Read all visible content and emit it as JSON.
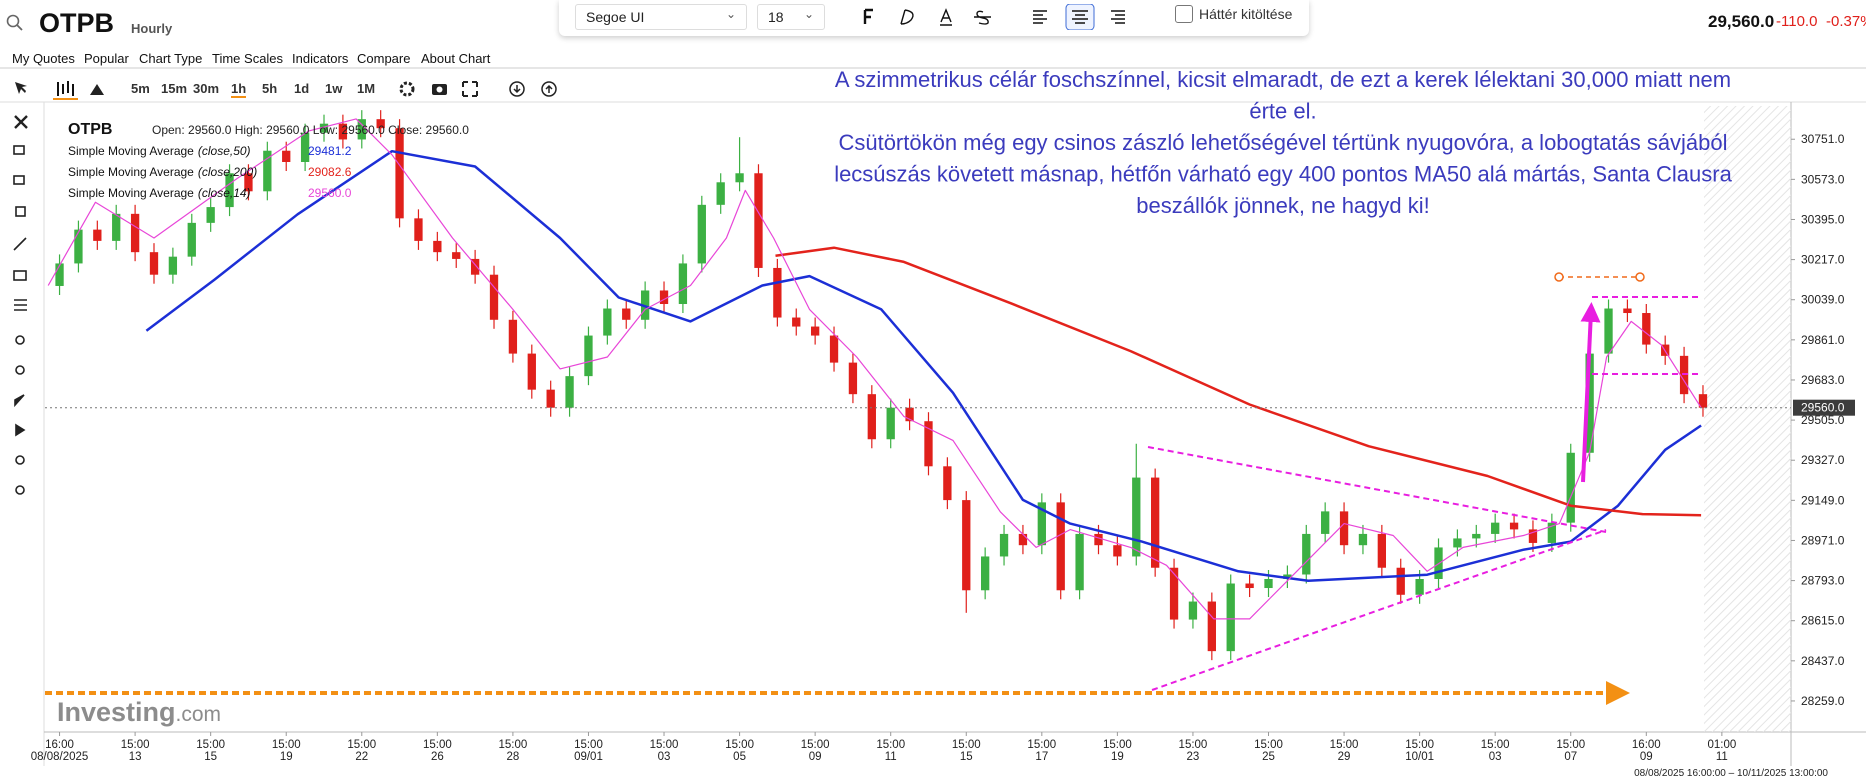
{
  "header": {
    "symbol": "OTPB",
    "interval": "Hourly",
    "price": "29,560.0",
    "change": "-110.0",
    "change_percent": "-0.37%"
  },
  "text_toolbar": {
    "font": "Segoe UI",
    "size": "18",
    "fill_label": "Háttér kitöltése"
  },
  "menu": [
    "My Quotes",
    "Popular",
    "Chart Type",
    "Time Scales",
    "Indicators",
    "Compare",
    "About Chart"
  ],
  "timeframes": [
    "5m",
    "15m",
    "30m",
    "1h",
    "5h",
    "1d",
    "1w",
    "1M"
  ],
  "chart_data": {
    "type": "candlestick",
    "symbol": "OTPB",
    "ohlc_label": "Open: 29560.0 High: 29560.0 Low: 29560.0 Close: 29560.0",
    "up_color": "#3cb043",
    "down_color": "#e0201b",
    "open": [
      30100,
      30200,
      30350,
      30300,
      30420,
      30250,
      30150,
      30230,
      30380,
      30450,
      30600,
      30520,
      30700,
      30650,
      30780,
      30820,
      30750,
      30840,
      30800,
      30400,
      30300,
      30250,
      30220,
      30150,
      29950,
      29800,
      29640,
      29560,
      29700,
      29880,
      30000,
      29950,
      30080,
      30020,
      30200,
      30460,
      30560,
      30600,
      30180,
      29960,
      29920,
      29880,
      29760,
      29620,
      29420,
      29560,
      29500,
      29300,
      29150,
      28750,
      28900,
      29000,
      28950,
      29140,
      28750,
      29000,
      28950,
      28900,
      29250,
      28850,
      28620,
      28700,
      28480,
      28780,
      28760,
      28800,
      28820,
      29000,
      29100,
      28950,
      29000,
      28850,
      28730,
      28800,
      28940,
      28980,
      29000,
      29050,
      29020,
      28960,
      29050,
      29360,
      29800,
      30000,
      29980,
      29840,
      29790,
      29620
    ],
    "high": [
      30240,
      30390,
      30390,
      30460,
      30460,
      30290,
      30270,
      30420,
      30490,
      30640,
      30640,
      30740,
      30740,
      30820,
      30860,
      30860,
      30880,
      30880,
      30840,
      30440,
      30340,
      30290,
      30260,
      30190,
      29990,
      29840,
      29680,
      29740,
      29920,
      30040,
      30040,
      30120,
      30120,
      30240,
      30500,
      30600,
      30760,
      30640,
      30220,
      30000,
      29960,
      29920,
      29800,
      29660,
      29600,
      29600,
      29540,
      29340,
      29190,
      28940,
      29040,
      29040,
      29180,
      29180,
      29040,
      29040,
      28990,
      29400,
      29290,
      28890,
      28740,
      28740,
      28820,
      28820,
      28840,
      28860,
      29040,
      29140,
      29140,
      29040,
      29040,
      28890,
      28840,
      28980,
      29020,
      29040,
      29090,
      29090,
      29060,
      29090,
      29400,
      29840,
      30040,
      30040,
      30020,
      29880,
      29830,
      29660
    ],
    "low": [
      30060,
      30160,
      30260,
      30260,
      30210,
      30110,
      30110,
      30190,
      30340,
      30410,
      30480,
      30480,
      30610,
      30610,
      30740,
      30710,
      30710,
      30760,
      30360,
      30260,
      30210,
      30180,
      30110,
      29910,
      29760,
      29600,
      29520,
      29520,
      29660,
      29840,
      29910,
      29910,
      29980,
      29980,
      30160,
      30420,
      30520,
      30140,
      29920,
      29880,
      29840,
      29720,
      29580,
      29380,
      29380,
      29460,
      29260,
      29110,
      28650,
      28710,
      28860,
      28910,
      28910,
      28710,
      28710,
      28910,
      28860,
      28860,
      28810,
      28580,
      28580,
      28440,
      28440,
      28720,
      28720,
      28760,
      28780,
      28960,
      28910,
      28910,
      28810,
      28690,
      28690,
      28760,
      28900,
      28940,
      28960,
      28980,
      28920,
      28920,
      29010,
      29320,
      29760,
      29940,
      29800,
      29750,
      29580,
      29520
    ],
    "close": [
      30200,
      30350,
      30300,
      30420,
      30250,
      30150,
      30230,
      30380,
      30450,
      30600,
      30520,
      30700,
      30650,
      30780,
      30820,
      30750,
      30840,
      30800,
      30400,
      30300,
      30250,
      30220,
      30150,
      29950,
      29800,
      29640,
      29560,
      29700,
      29880,
      30000,
      29950,
      30080,
      30020,
      30200,
      30460,
      30560,
      30600,
      30180,
      29960,
      29920,
      29880,
      29760,
      29620,
      29420,
      29560,
      29500,
      29300,
      29150,
      28750,
      28900,
      29000,
      28950,
      29140,
      28750,
      29000,
      28950,
      28900,
      29250,
      28850,
      28620,
      28700,
      28480,
      28780,
      28760,
      28800,
      28820,
      29000,
      29100,
      28950,
      29000,
      28850,
      28730,
      28800,
      28940,
      28980,
      29000,
      29050,
      29020,
      28960,
      29050,
      29360,
      29800,
      30000,
      29980,
      29840,
      29790,
      29620,
      29560
    ],
    "series": [
      {
        "name": "Simple Moving Average",
        "params": "(close,50)",
        "color": "#1c2fd6",
        "width": 2.5,
        "x": [
          4.6,
          8.2,
          12.6,
          17.6,
          22,
          26.5,
          29.6,
          33.4,
          37.2,
          39.7,
          43.5,
          47.3,
          51,
          53.5,
          57.3,
          62.4,
          66.1,
          72.4,
          77.5,
          80,
          82.5,
          85,
          86.9
        ],
        "values": [
          29901,
          30128,
          30418,
          30698,
          30630,
          30313,
          30049,
          29943,
          30102,
          30144,
          29996,
          29626,
          29151,
          29046,
          28966,
          28834,
          28792,
          28819,
          28930,
          28966,
          29125,
          29373,
          29481.2
        ],
        "last_label": "29481.2"
      },
      {
        "name": "Simple Moving Average",
        "params": "(close,200)",
        "color": "#e3231c",
        "width": 2.5,
        "x": [
          37.9,
          41,
          44.7,
          50.4,
          56.7,
          63,
          69.3,
          75.6,
          80,
          83.8,
          86.9
        ],
        "values": [
          30234,
          30270,
          30207,
          30022,
          29811,
          29574,
          29389,
          29257,
          29125,
          29088,
          29082.6
        ],
        "last_label": "29082.6"
      },
      {
        "name": "Simple Moving Average",
        "params": "(close,14)",
        "color": "#e846d8",
        "width": 1.2,
        "x": [
          -0.6,
          1.9,
          5,
          9.4,
          13.2,
          15.7,
          17.6,
          20.8,
          24,
          26.5,
          29,
          31,
          33.4,
          35.3,
          36.3,
          37.8,
          39.7,
          42.2,
          44.7,
          47.3,
          49.8,
          51.7,
          53.5,
          56.7,
          58.6,
          61.1,
          63,
          65.5,
          68,
          70.6,
          72.4,
          74.3,
          77.5,
          79.4,
          81,
          81.9,
          83.2,
          84.8,
          86,
          86.9
        ],
        "values": [
          30102,
          30471,
          30313,
          30577,
          30788,
          30841,
          30682,
          30313,
          29996,
          29732,
          29785,
          29996,
          30102,
          30313,
          30524,
          30313,
          29996,
          29785,
          29521,
          29415,
          29098,
          28940,
          29019,
          28940,
          28861,
          28623,
          28623,
          28834,
          29046,
          28993,
          28834,
          28940,
          28993,
          29046,
          29362,
          29785,
          29943,
          29838,
          29679,
          29560
        ],
        "last_label": "29560.0"
      }
    ],
    "xlim": [
      -0.77,
      91.66
    ],
    "xticks": [
      {
        "value": 0,
        "label": "16:00",
        "date": "08/08/2025"
      },
      {
        "value": 4,
        "label": "15:00",
        "date": "13"
      },
      {
        "value": 8,
        "label": "15:00",
        "date": "15"
      },
      {
        "value": 12,
        "label": "15:00",
        "date": "19"
      },
      {
        "value": 16,
        "label": "15:00",
        "date": "22"
      },
      {
        "value": 20,
        "label": "15:00",
        "date": "26"
      },
      {
        "value": 24,
        "label": "15:00",
        "date": "28"
      },
      {
        "value": 28,
        "label": "15:00",
        "date": "09/01"
      },
      {
        "value": 32,
        "label": "15:00",
        "date": "03"
      },
      {
        "value": 36,
        "label": "15:00",
        "date": "05"
      },
      {
        "value": 40,
        "label": "15:00",
        "date": "09"
      },
      {
        "value": 44,
        "label": "15:00",
        "date": "11"
      },
      {
        "value": 48,
        "label": "15:00",
        "date": "15"
      },
      {
        "value": 52,
        "label": "15:00",
        "date": "17"
      },
      {
        "value": 56,
        "label": "15:00",
        "date": "19"
      },
      {
        "value": 60,
        "label": "15:00",
        "date": "23"
      },
      {
        "value": 64,
        "label": "15:00",
        "date": "25"
      },
      {
        "value": 68,
        "label": "15:00",
        "date": "29"
      },
      {
        "value": 72,
        "label": "15:00",
        "date": "10/01"
      },
      {
        "value": 76,
        "label": "15:00",
        "date": "03"
      },
      {
        "value": 80,
        "label": "15:00",
        "date": "07"
      },
      {
        "value": 84,
        "label": "16:00",
        "date": "09"
      },
      {
        "value": 88,
        "label": "01:00",
        "date": "11"
      }
    ],
    "ylim": [
      28139,
      30894
    ],
    "yticks": [
      {
        "value": 30751,
        "label": "30751.0"
      },
      {
        "value": 30573,
        "label": "30573.0"
      },
      {
        "value": 30395,
        "label": "30395.0"
      },
      {
        "value": 30217,
        "label": "30217.0"
      },
      {
        "value": 30039,
        "label": "30039.0"
      },
      {
        "value": 29861,
        "label": "29861.0"
      },
      {
        "value": 29683,
        "label": "29683.0"
      },
      {
        "value": 29505,
        "label": "29505.0"
      },
      {
        "value": 29327,
        "label": "29327.0"
      },
      {
        "value": 29149,
        "label": "29149.0"
      },
      {
        "value": 28971,
        "label": "28971.0"
      },
      {
        "value": 28793,
        "label": "28793.0"
      },
      {
        "value": 28615,
        "label": "28615.0"
      },
      {
        "value": 28437,
        "label": "28437.0"
      },
      {
        "value": 28259,
        "label": "28259.0"
      }
    ],
    "grid": false,
    "last_price": {
      "value": 29560,
      "label": "29560.0"
    },
    "annotation": [
      "A szimmetrikus célár foschszínnel, kicsit elmaradt, de ezt a kerek lélektani 30,000 miatt nem",
      "érte el.",
      "Csütörtökön még egy csinos zászló lehetőségével tértünk nyugovóra, a lobogtatás sávjából",
      "lecsúszás követett másnap, hétfőn várható egy 400 pontos MA50 alá mártás, Santa Clausra",
      "beszállók jönnek, ne hagyd ki!"
    ],
    "watermark": "Investing",
    "watermark_suffix": ".com",
    "range": "08/08/2025 16:00:00 – 10/11/2025 13:00:00"
  }
}
